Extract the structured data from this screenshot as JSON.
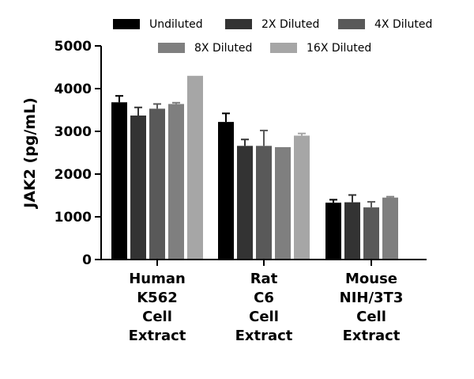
{
  "chart_data": {
    "type": "bar",
    "categories": [
      [
        "Human",
        "K562",
        "Cell",
        "Extract"
      ],
      [
        "Rat",
        "C6",
        "Cell",
        "Extract"
      ],
      [
        "Mouse",
        "NIH/3T3",
        "Cell",
        "Extract"
      ]
    ],
    "ylabel": "JAK2 (pg/mL)",
    "xlabel": "",
    "ylim": [
      0,
      5000
    ],
    "yticks": [
      0,
      1000,
      2000,
      3000,
      4000,
      5000
    ],
    "legend_placement": "top",
    "series": [
      {
        "name": "Undiluted",
        "color": "#000000",
        "values": [
          3680,
          3220,
          1330
        ],
        "errors": [
          150,
          200,
          70
        ]
      },
      {
        "name": "2X Diluted",
        "color": "#333333",
        "values": [
          3370,
          2660,
          1340
        ],
        "errors": [
          190,
          150,
          170
        ]
      },
      {
        "name": "4X Diluted",
        "color": "#595959",
        "values": [
          3530,
          2660,
          1220
        ],
        "errors": [
          110,
          360,
          130
        ]
      },
      {
        "name": "8X Diluted",
        "color": "#7f7f7f",
        "values": [
          3640,
          2630,
          1450
        ],
        "errors": [
          30,
          0,
          20
        ]
      },
      {
        "name": "16X Diluted",
        "color": "#a6a6a6",
        "values": [
          4300,
          2900,
          null
        ],
        "errors": [
          0,
          50,
          0
        ]
      }
    ]
  }
}
